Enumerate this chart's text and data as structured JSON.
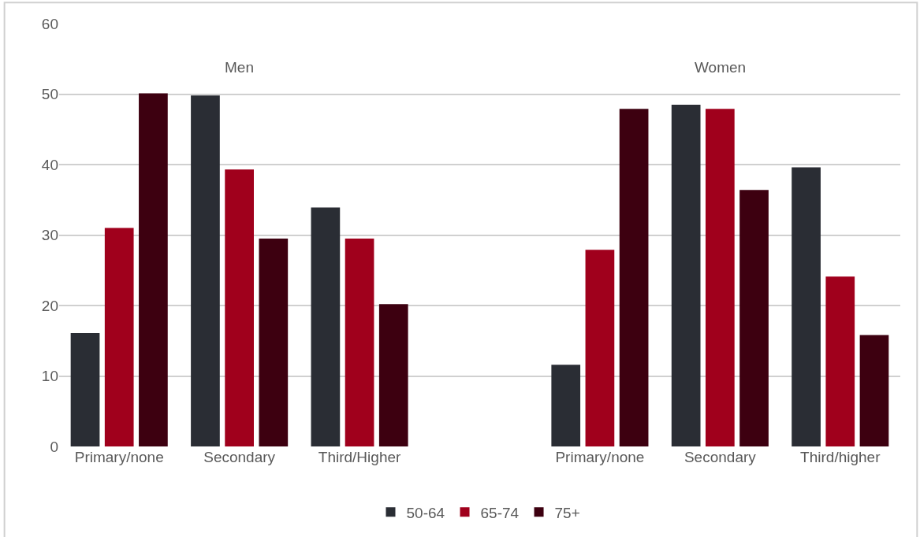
{
  "chart_data": {
    "type": "bar",
    "categories": [
      "Primary/none",
      "Secondary",
      "Third/Higher",
      null,
      "Primary/none",
      "Secondary",
      "Third/higher"
    ],
    "series": [
      {
        "name": "50-64",
        "color": "#2a2d34",
        "values": [
          16.1,
          49.8,
          33.9,
          null,
          11.6,
          48.5,
          39.6
        ]
      },
      {
        "name": "65-74",
        "color": "#a0001c",
        "values": [
          31,
          39.3,
          29.5,
          null,
          27.9,
          47.9,
          24.1
        ]
      },
      {
        "name": "75+",
        "color": "#3d0010",
        "values": [
          50.1,
          29.5,
          20.2,
          null,
          47.9,
          36.4,
          15.8
        ]
      }
    ],
    "annotations": [
      "Men",
      "Women"
    ],
    "ylim": [
      0,
      60
    ],
    "yticks": [
      0,
      10,
      20,
      30,
      40,
      50,
      60
    ],
    "grid": "y",
    "legend": "bottom"
  }
}
